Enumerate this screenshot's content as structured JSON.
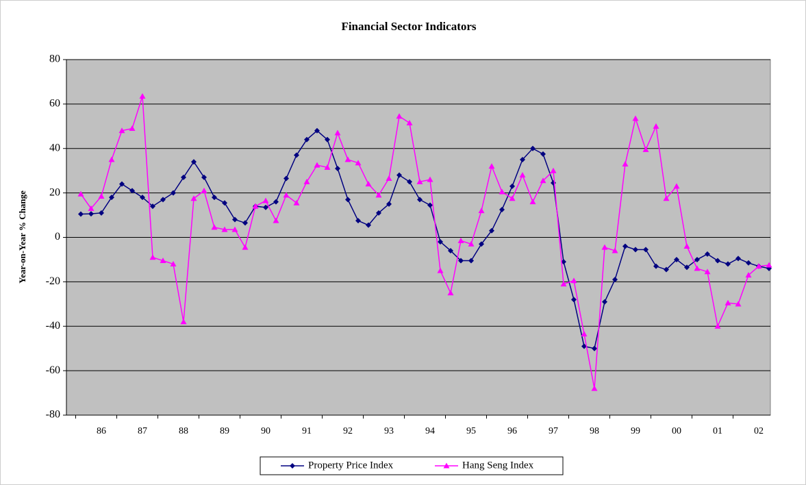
{
  "chart_data": {
    "type": "line",
    "title": "Financial Sector Indicators",
    "y_label": "Year-on-Year % Change",
    "categories": [
      null,
      null,
      "86",
      null,
      null,
      null,
      "87",
      null,
      null,
      null,
      "88",
      null,
      null,
      null,
      "89",
      null,
      null,
      null,
      "90",
      null,
      null,
      null,
      "91",
      null,
      null,
      null,
      "92",
      null,
      null,
      null,
      "93",
      null,
      null,
      null,
      "94",
      null,
      null,
      null,
      "95",
      null,
      null,
      null,
      "96",
      null,
      null,
      null,
      "97",
      null,
      null,
      null,
      "98",
      null,
      null,
      null,
      "99",
      null,
      null,
      null,
      "00",
      null,
      null,
      null,
      "01",
      null,
      null,
      null,
      "02",
      null
    ],
    "series": [
      {
        "name": "Property Price Index",
        "color": "#000080",
        "marker": "diamond",
        "values": [
          10.5,
          10.6,
          11,
          18,
          24,
          21,
          18,
          14,
          17,
          20,
          27,
          34,
          27,
          18,
          15.5,
          8,
          6.5,
          14,
          13.5,
          16,
          26.5,
          37,
          44,
          48,
          44,
          31,
          17,
          7.5,
          5.5,
          11,
          15,
          28,
          25,
          17,
          14.5,
          -2,
          -6,
          -10.5,
          -10.5,
          -3,
          3,
          12.5,
          23,
          35,
          40,
          37.5,
          24.5,
          -11,
          -28,
          -49,
          -50,
          -29,
          -19,
          -4,
          -5.5,
          -5.5,
          -13,
          -14.5,
          -10,
          -13.5,
          -10,
          -7.5,
          -10.5,
          -12,
          -9.5,
          -11.5,
          -13,
          -14
        ]
      },
      {
        "name": "Hang Seng Index",
        "color": "#ff00ff",
        "marker": "triangle",
        "values": [
          19.5,
          13,
          18.5,
          35,
          48,
          49,
          63.5,
          -9,
          -10.5,
          -12,
          -38,
          17.5,
          21,
          4.5,
          3.5,
          3.5,
          -4.5,
          14,
          16.5,
          7.5,
          19,
          15.5,
          25,
          32.5,
          31.5,
          47,
          35,
          33.5,
          24,
          19,
          26.5,
          54.5,
          51.5,
          25,
          26,
          -15,
          -25,
          -1.5,
          -3,
          12,
          32,
          20.5,
          17.5,
          28,
          16,
          25.5,
          30,
          -21,
          -19.5,
          -43.5,
          -68,
          -4.5,
          -6,
          33,
          53.5,
          39.5,
          50,
          17.5,
          23,
          -4,
          -14,
          -15.5,
          -40,
          -29.5,
          -30,
          -17,
          -13,
          -12.5
        ]
      }
    ],
    "ylim": [
      -80,
      80
    ],
    "yticks": [
      -80,
      -60,
      -40,
      -20,
      0,
      20,
      40,
      60,
      80
    ],
    "grid": true,
    "legend": "bottom",
    "plot_background": "#c0c0c0"
  }
}
